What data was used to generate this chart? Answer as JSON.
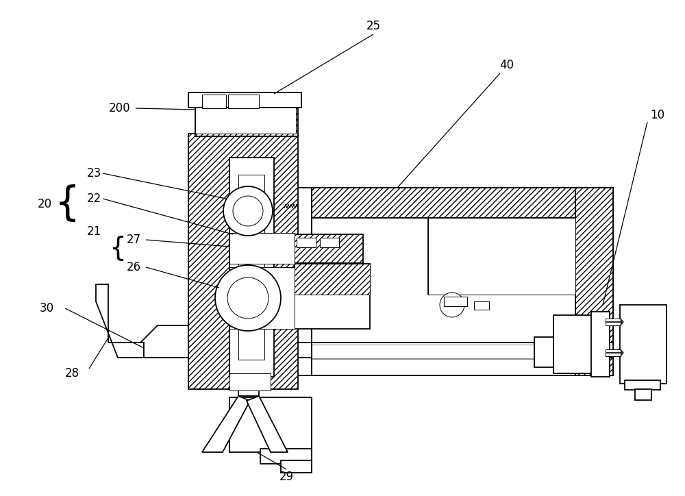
{
  "bg_color": "#ffffff",
  "line_color": "#000000",
  "gray_color": "#888888",
  "lw_main": 1.3,
  "lw_thin": 0.7,
  "fs_label": 11
}
